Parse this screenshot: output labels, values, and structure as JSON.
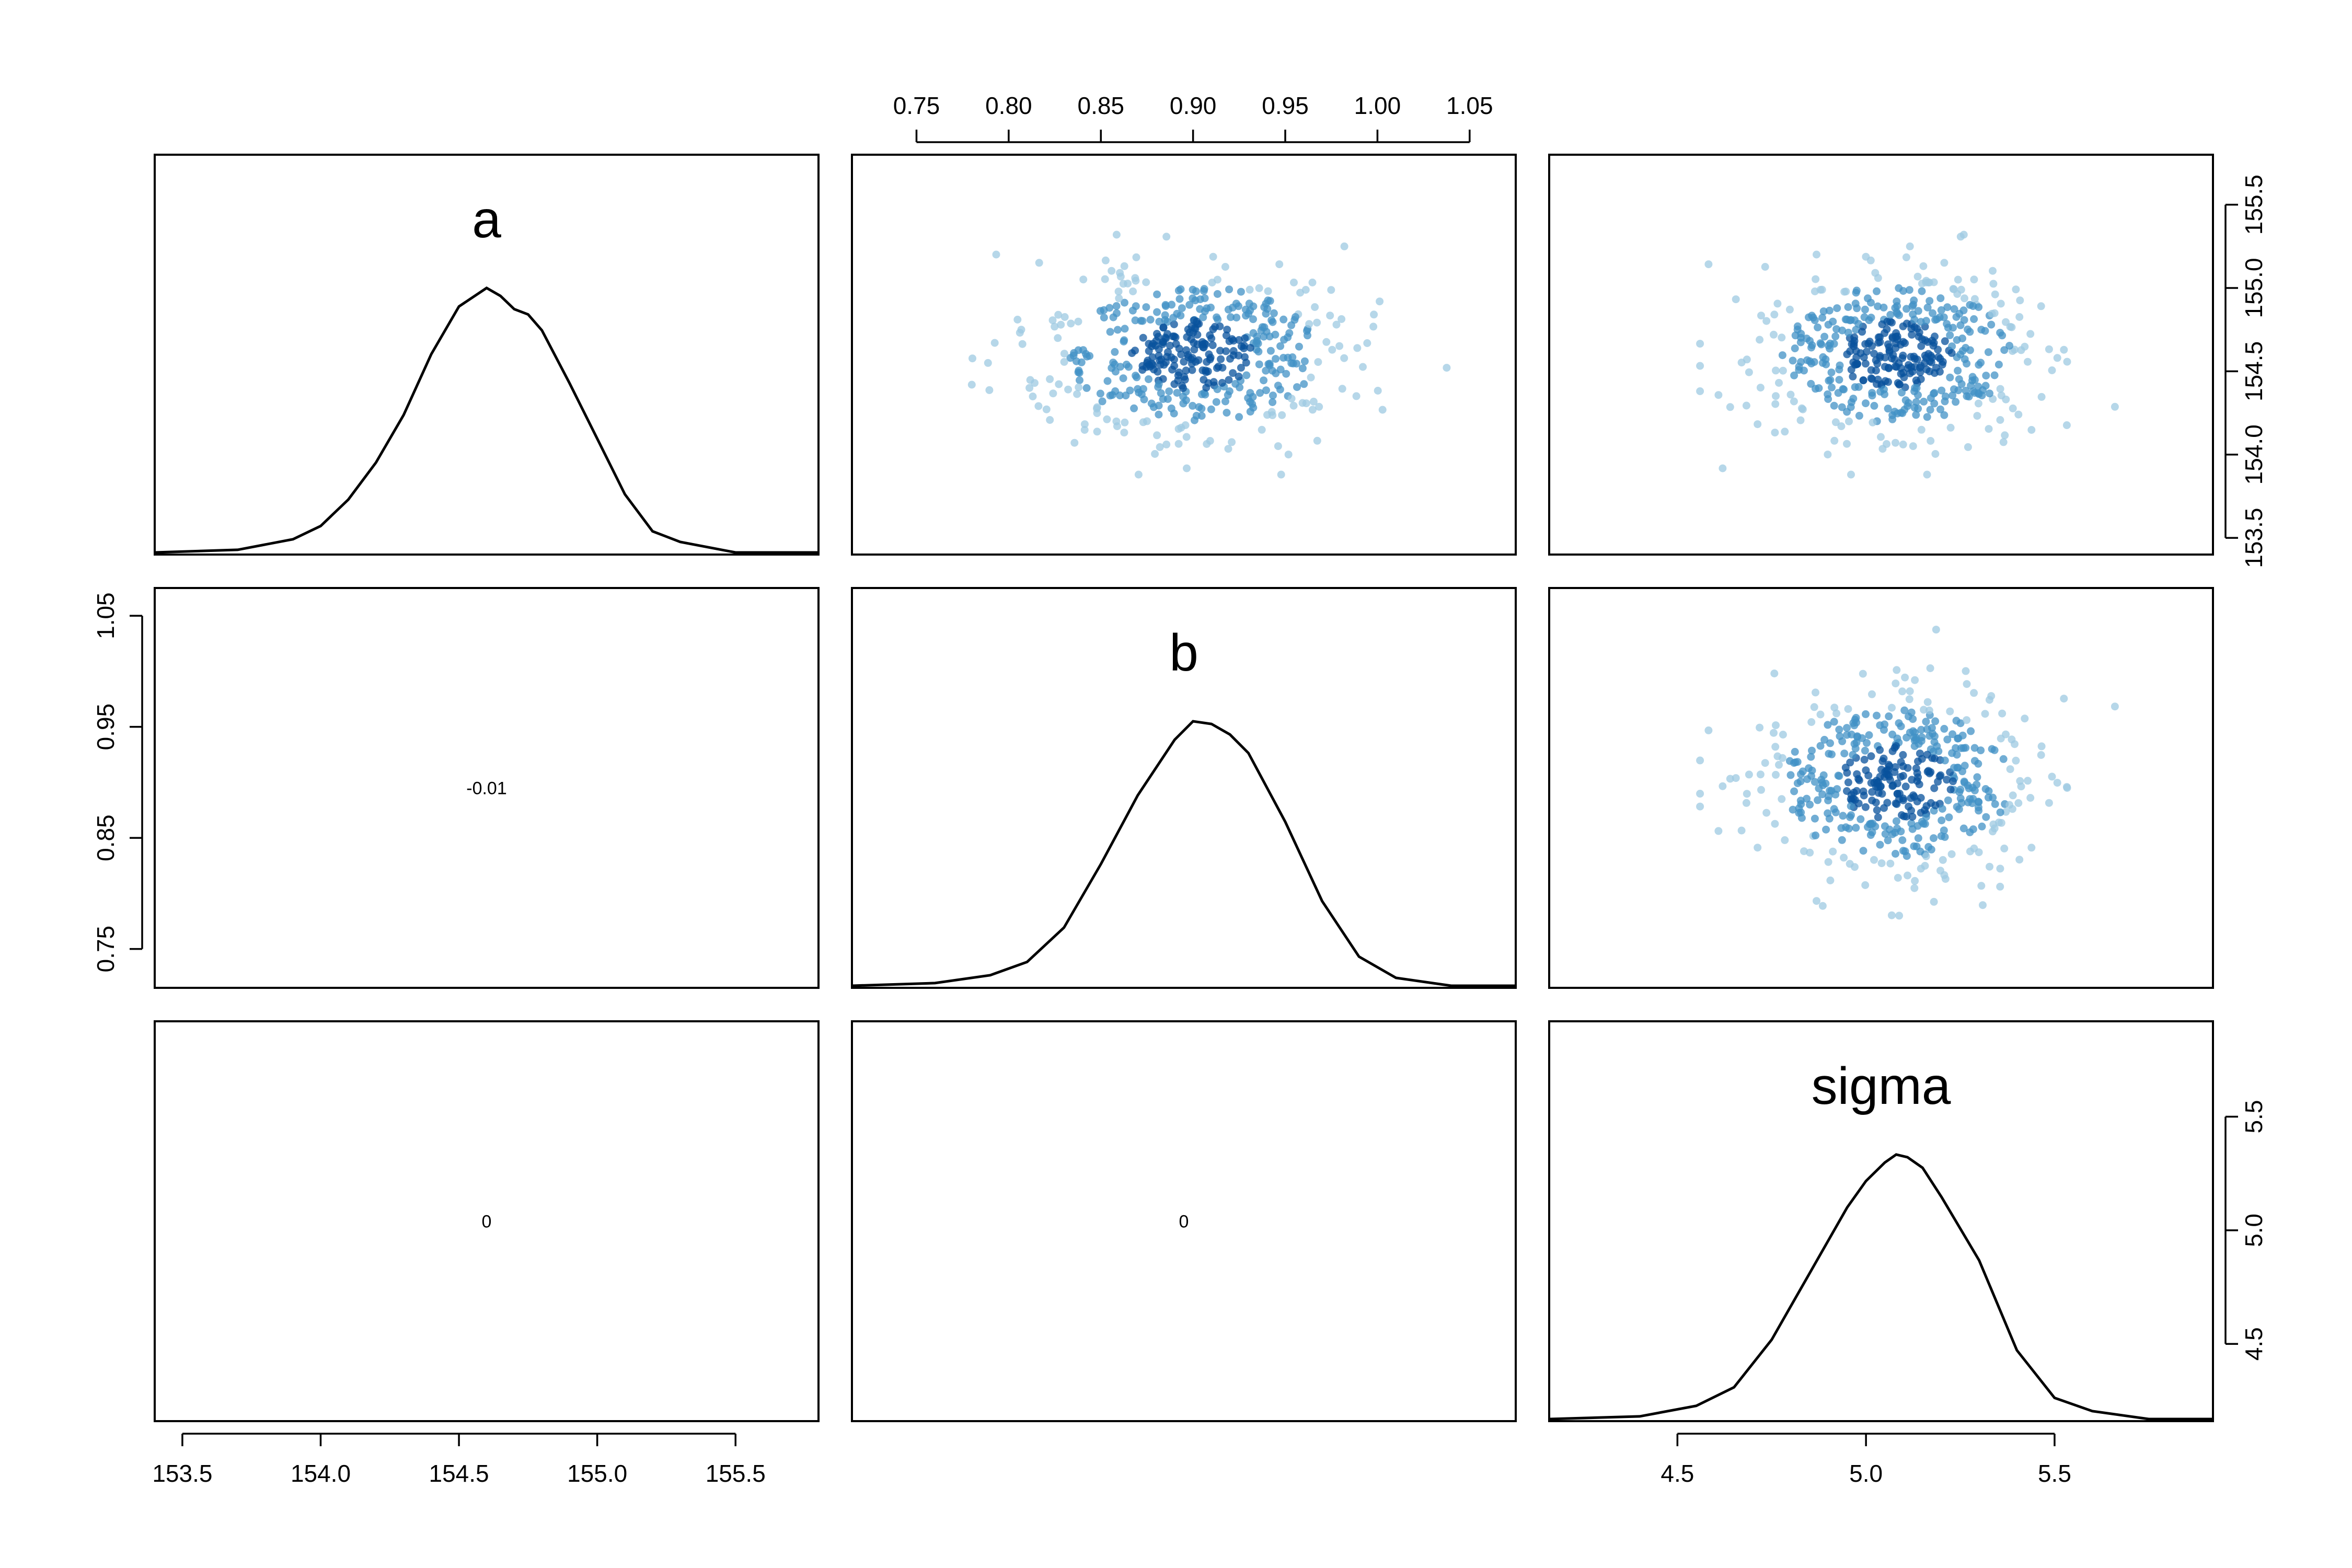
{
  "chart_data": {
    "type": "scatter",
    "layout": "pairs-matrix",
    "variables": [
      "a",
      "b",
      "sigma"
    ],
    "colors": {
      "frame": "#000000",
      "density_line": "#000000",
      "point_light": "#9ecae1",
      "point_mid": "#4292c6",
      "point_dark": "#08519c"
    },
    "axes": {
      "a": {
        "range": [
          153.4,
          155.8
        ],
        "ticks": [
          "153.5",
          "154.0",
          "154.5",
          "155.0",
          "155.5"
        ]
      },
      "b": {
        "range": [
          0.715,
          1.075
        ],
        "ticks": [
          "0.75",
          "0.80",
          "0.85",
          "0.90",
          "0.95",
          "1.00",
          "1.05"
        ],
        "ticks_left": [
          "0.75",
          "0.85",
          "0.95",
          "1.05"
        ]
      },
      "sigma": {
        "range": [
          4.16,
          5.92
        ],
        "ticks": [
          "4.5",
          "5.0",
          "5.5"
        ]
      }
    },
    "correlations": {
      "a_b": "-0.01",
      "a_sigma": "0",
      "b_sigma": "0"
    },
    "densities": {
      "a": {
        "x": [
          153.4,
          153.7,
          153.9,
          154.0,
          154.1,
          154.2,
          154.3,
          154.4,
          154.5,
          154.6,
          154.65,
          154.7,
          154.75,
          154.8,
          154.9,
          155.0,
          155.1,
          155.2,
          155.3,
          155.5,
          155.8
        ],
        "y": [
          0.0,
          0.01,
          0.05,
          0.1,
          0.2,
          0.34,
          0.52,
          0.75,
          0.93,
          1.0,
          0.97,
          0.92,
          0.9,
          0.84,
          0.64,
          0.43,
          0.22,
          0.08,
          0.04,
          0.0,
          0.0
        ]
      },
      "b": {
        "x": [
          0.715,
          0.76,
          0.79,
          0.81,
          0.83,
          0.85,
          0.87,
          0.89,
          0.9,
          0.91,
          0.92,
          0.93,
          0.95,
          0.97,
          0.99,
          1.01,
          1.04,
          1.075
        ],
        "y": [
          0.0,
          0.01,
          0.04,
          0.09,
          0.22,
          0.46,
          0.72,
          0.93,
          1.0,
          0.99,
          0.95,
          0.88,
          0.62,
          0.32,
          0.11,
          0.03,
          0.0,
          0.0
        ]
      },
      "sigma": {
        "x": [
          4.16,
          4.4,
          4.55,
          4.65,
          4.75,
          4.85,
          4.95,
          5.0,
          5.05,
          5.08,
          5.11,
          5.15,
          5.2,
          5.3,
          5.4,
          5.45,
          5.5,
          5.6,
          5.75,
          5.92
        ],
        "y": [
          0.0,
          0.01,
          0.05,
          0.12,
          0.3,
          0.55,
          0.8,
          0.9,
          0.97,
          1.0,
          0.99,
          0.95,
          0.84,
          0.6,
          0.26,
          0.17,
          0.08,
          0.03,
          0.0,
          0.0
        ]
      }
    },
    "scatter": {
      "n_points": 500,
      "a": {
        "mean": 154.6,
        "sd": 0.26,
        "range": [
          153.88,
          155.32
        ]
      },
      "b": {
        "mean": 0.9,
        "sd": 0.042,
        "range": [
          0.78,
          1.04
        ]
      },
      "sigma": {
        "mean": 5.08,
        "sd": 0.19,
        "range": [
          4.56,
          5.66
        ]
      }
    }
  }
}
